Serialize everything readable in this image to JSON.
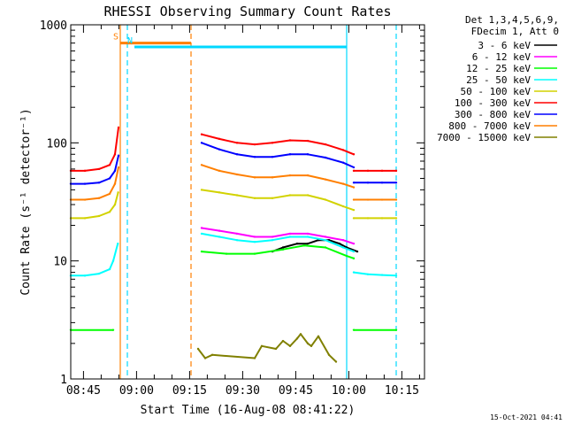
{
  "chart_data": {
    "type": "line",
    "title": "RHESSI Observing Summary Count Rates",
    "xlabel": "Start Time (16-Aug-08 08:41:22)",
    "ylabel": "Count Rate (s⁻¹ detector⁻¹)",
    "x_unit": "minutes after 08:41:22",
    "xlim": [
      0,
      100
    ],
    "ylim": [
      1,
      1000
    ],
    "yscale": "log",
    "xticks": [
      {
        "label": "08:45",
        "value": 3.6
      },
      {
        "label": "09:00",
        "value": 18.6
      },
      {
        "label": "09:15",
        "value": 33.6
      },
      {
        "label": "09:30",
        "value": 48.6
      },
      {
        "label": "09:45",
        "value": 63.6
      },
      {
        "label": "10:00",
        "value": 78.6
      },
      {
        "label": "10:15",
        "value": 93.6
      }
    ],
    "yticks": [
      {
        "label": "1",
        "value": 1
      },
      {
        "label": "10",
        "value": 10
      },
      {
        "label": "100",
        "value": 100
      },
      {
        "label": "1000",
        "value": 1000
      }
    ],
    "legend": {
      "header": [
        "Det 1,3,4,5,6,9,",
        "FDecim 1, Att 0"
      ],
      "placement": "right"
    },
    "series": [
      {
        "name": "3 - 6 keV",
        "color": "#000000",
        "segments": [
          {
            "x": [
              57,
              60,
              64,
              67,
              70,
              73,
              76,
              78,
              81
            ],
            "y": [
              12,
              13,
              14,
              14,
              15,
              15,
              14,
              13,
              12
            ]
          }
        ]
      },
      {
        "name": "6 - 12 keV",
        "color": "#ff00ff",
        "segments": [
          {
            "x": [
              37,
              42,
              47,
              52,
              57,
              62,
              67,
              72,
              77,
              80
            ],
            "y": [
              19,
              18,
              17,
              16,
              16,
              17,
              17,
              16,
              15,
              14
            ]
          }
        ]
      },
      {
        "name": "12 - 25 keV",
        "color": "#00ff00",
        "segments": [
          {
            "x": [
              0,
              12
            ],
            "y": [
              2.6,
              2.6
            ]
          },
          {
            "x": [
              37,
              44,
              52,
              60,
              66,
              72,
              78,
              80
            ],
            "y": [
              12,
              11.5,
              11.5,
              12.5,
              13.5,
              13,
              11,
              10.5
            ]
          },
          {
            "x": [
              80,
              92
            ],
            "y": [
              2.6,
              2.6
            ]
          }
        ]
      },
      {
        "name": "25 - 50 keV",
        "color": "#00ffff",
        "segments": [
          {
            "x": [
              0,
              4,
              8,
              11,
              12,
              13.3
            ],
            "y": [
              7.5,
              7.5,
              7.8,
              8.5,
              10,
              14
            ]
          },
          {
            "x": [
              37,
              42,
              47,
              52,
              57,
              62,
              67,
              72,
              77,
              80
            ],
            "y": [
              17,
              16,
              15,
              14.5,
              15,
              16,
              16,
              15,
              13,
              12
            ]
          },
          {
            "x": [
              80,
              84,
              88,
              92
            ],
            "y": [
              8,
              7.7,
              7.6,
              7.5
            ]
          }
        ]
      },
      {
        "name": "50 - 100 keV",
        "color": "#d2d200",
        "segments": [
          {
            "x": [
              0,
              4,
              8,
              11,
              12.5,
              13.4
            ],
            "y": [
              23,
              23,
              24,
              26,
              30,
              38
            ]
          },
          {
            "x": [
              37,
              42,
              47,
              52,
              57,
              62,
              67,
              72,
              77,
              80
            ],
            "y": [
              40,
              38,
              36,
              34,
              34,
              36,
              36,
              33,
              29,
              27
            ]
          },
          {
            "x": [
              80,
              84,
              88,
              92
            ],
            "y": [
              23,
              23,
              23,
              23
            ]
          }
        ]
      },
      {
        "name": "100 - 300 keV",
        "color": "#ff0000",
        "segments": [
          {
            "x": [
              0,
              4,
              8,
              11,
              12.5,
              13.5
            ],
            "y": [
              58,
              58,
              60,
              65,
              80,
              135
            ]
          },
          {
            "x": [
              37,
              42,
              47,
              52,
              57,
              62,
              67,
              72,
              77,
              80
            ],
            "y": [
              118,
              108,
              100,
              97,
              100,
              105,
              104,
              97,
              87,
              80
            ]
          },
          {
            "x": [
              80,
              84,
              88,
              92
            ],
            "y": [
              58,
              58,
              58,
              58
            ]
          }
        ]
      },
      {
        "name": "300 - 800 keV",
        "color": "#0000ff",
        "segments": [
          {
            "x": [
              0,
              4,
              8,
              11,
              12.5,
              13.5
            ],
            "y": [
              45,
              45,
              46,
              50,
              58,
              78
            ]
          },
          {
            "x": [
              37,
              42,
              47,
              52,
              57,
              62,
              67,
              72,
              77,
              80
            ],
            "y": [
              100,
              88,
              80,
              76,
              76,
              80,
              80,
              75,
              68,
              62
            ]
          },
          {
            "x": [
              80,
              84,
              88,
              92
            ],
            "y": [
              46,
              46,
              46,
              46
            ]
          }
        ]
      },
      {
        "name": "800 - 7000 keV",
        "color": "#ff7f00",
        "segments": [
          {
            "x": [
              0,
              4,
              8,
              11,
              12.5,
              13.5
            ],
            "y": [
              33,
              33,
              34,
              37,
              45,
              62
            ]
          },
          {
            "x": [
              37,
              42,
              47,
              52,
              57,
              62,
              67,
              72,
              77,
              80
            ],
            "y": [
              65,
              58,
              54,
              51,
              51,
              53,
              53,
              49,
              45,
              42
            ]
          },
          {
            "x": [
              80,
              84,
              88,
              92
            ],
            "y": [
              33,
              33,
              33,
              33
            ]
          }
        ]
      },
      {
        "name": "7000 - 15000 keV",
        "color": "#808000",
        "segments": [
          {
            "x": [
              36,
              38,
              40,
              52,
              54,
              58,
              60,
              62,
              64,
              65,
              67,
              68,
              70,
              73,
              75
            ],
            "y": [
              1.8,
              1.5,
              1.6,
              1.5,
              1.9,
              1.8,
              2.1,
              1.9,
              2.2,
              2.4,
              2.0,
              1.9,
              2.3,
              1.6,
              1.4
            ]
          }
        ]
      }
    ],
    "intervals": [
      {
        "label": "S",
        "color": "#ff7f00",
        "x_start": 14,
        "x_end": 34,
        "y": 700
      },
      {
        "label": "N",
        "color": "#00d8ff",
        "x_start": 18,
        "x_end": 78,
        "y": 650
      }
    ],
    "markers": [
      {
        "kind": "solid-line",
        "color": "#ff7f00",
        "x": 14
      },
      {
        "kind": "dashed-line",
        "color": "#ff7f00",
        "x": 34
      },
      {
        "kind": "dashed-line",
        "color": "#00d8ff",
        "x": 16
      },
      {
        "kind": "solid-line",
        "color": "#00d8ff",
        "x": 78
      },
      {
        "kind": "dashed-line",
        "color": "#00d8ff",
        "x": 92
      }
    ],
    "grid": false
  },
  "footer": {
    "timestamp": "15-Oct-2021 04:41"
  }
}
